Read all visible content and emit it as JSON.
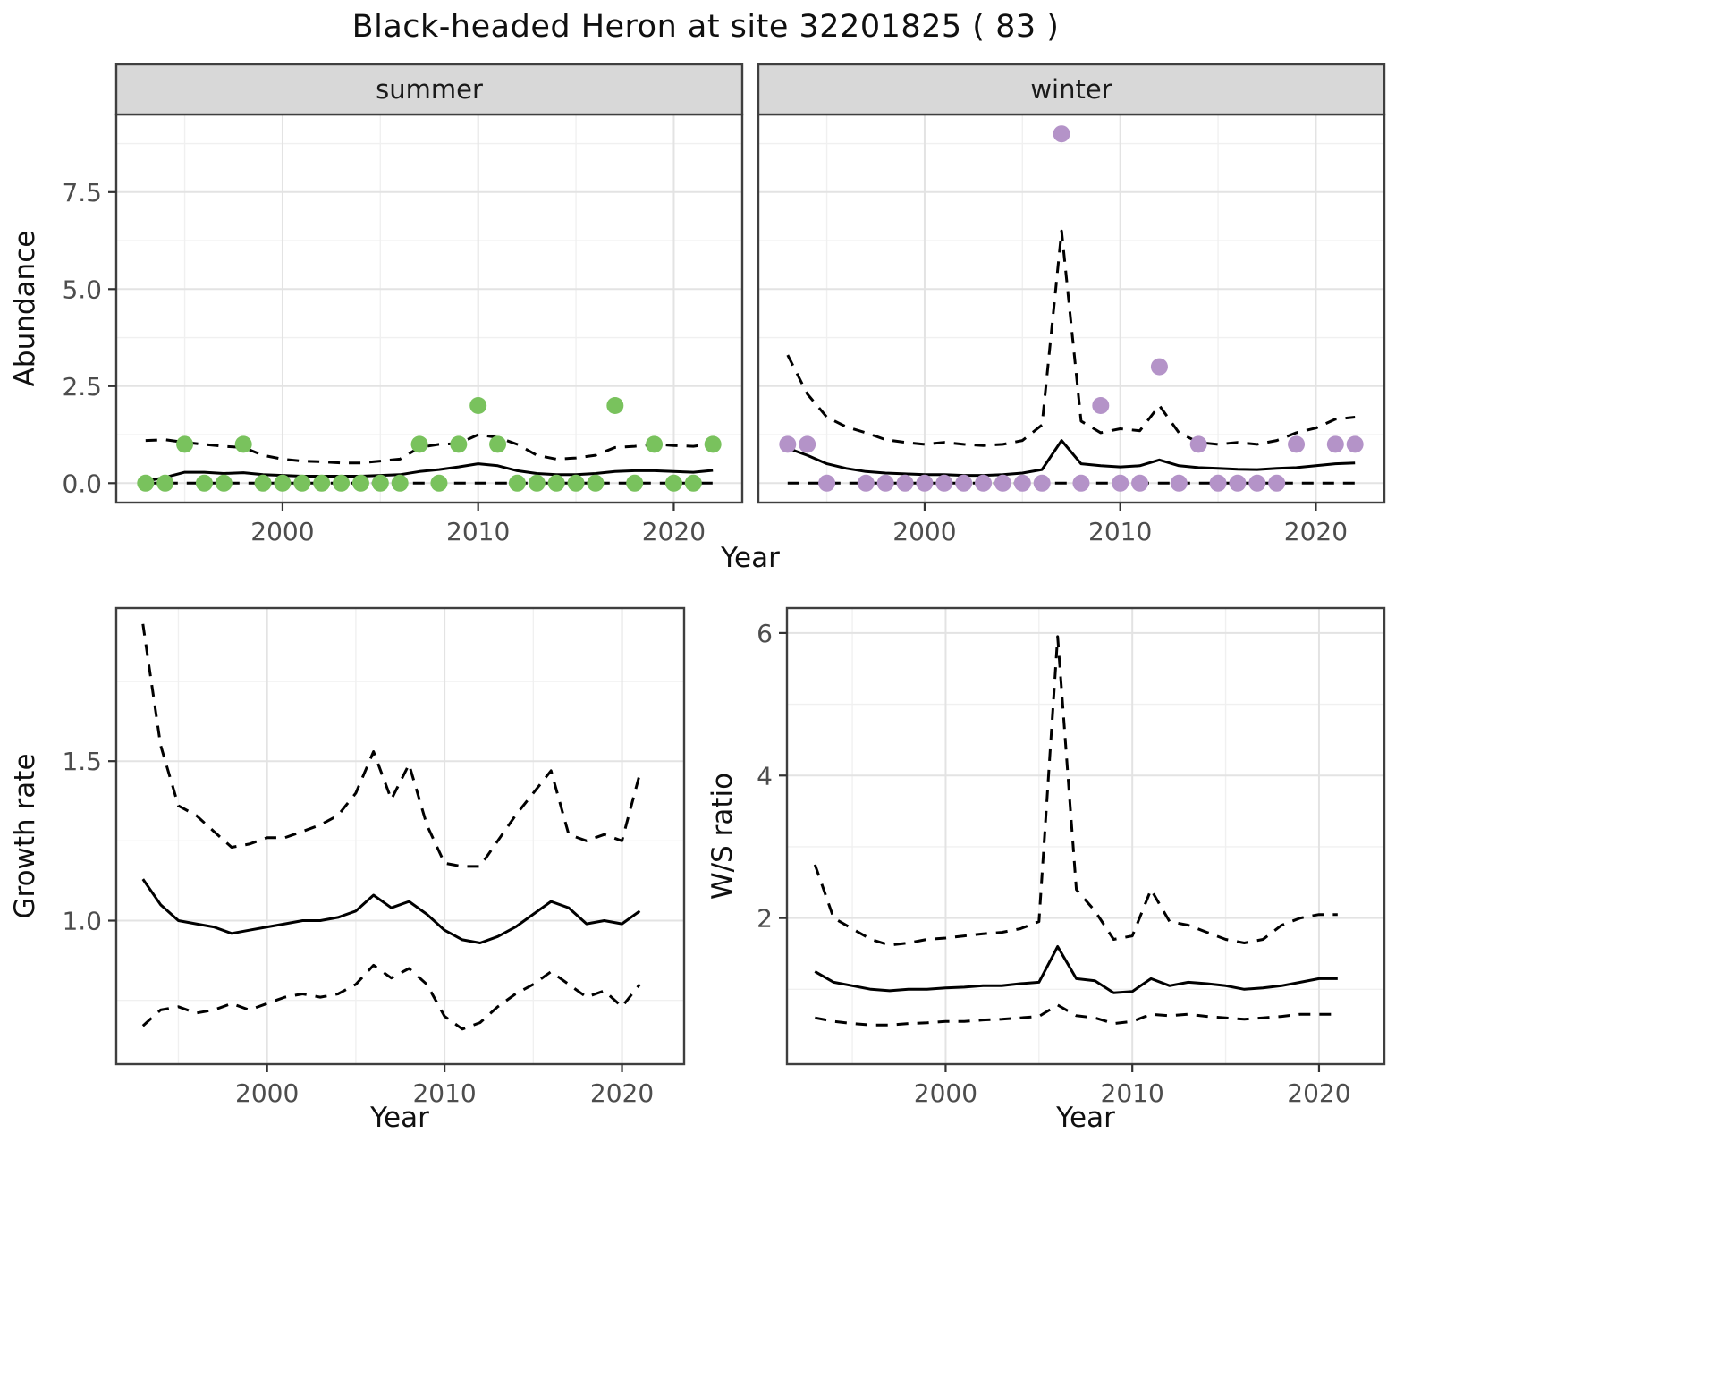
{
  "title": "Black-headed Heron at site 32201825 ( 83 )",
  "top": {
    "xlabel": "Year",
    "ylabel": "Abundance"
  },
  "bottom_left": {
    "xlabel": "Year",
    "ylabel": "Growth rate"
  },
  "bottom_right": {
    "xlabel": "Year",
    "ylabel": "W/S ratio"
  },
  "colors": {
    "summer_points": "#79c25d",
    "winter_points": "#b493c8",
    "line": "#000000",
    "grid_major": "#e3e3e3",
    "grid_minor": "#f0f0f0",
    "panel_border": "#3f3f3f",
    "strip_fill": "#d8d8d8",
    "tick_text": "#4d4d4d"
  },
  "chart_data": [
    {
      "id": "abundance-summer",
      "type": "scatter",
      "facet_label": "summer",
      "xlabel": "Year",
      "ylabel": "Abundance",
      "xlim": [
        1991.5,
        2023.5
      ],
      "ylim": [
        -0.5,
        9.5
      ],
      "xticks": [
        2000,
        2010,
        2020
      ],
      "xtick_labels": [
        "2000",
        "2010",
        "2020"
      ],
      "xminor": [
        1995,
        2005,
        2015
      ],
      "yticks": [
        0,
        2.5,
        5,
        7.5
      ],
      "ytick_labels": [
        "0.0",
        "2.5",
        "5.0",
        "7.5"
      ],
      "yminor": [
        1.25,
        3.75,
        6.25,
        8.75
      ],
      "show_yticks": true,
      "show_ytick_labels": true,
      "years": [
        1993,
        1994,
        1995,
        1996,
        1997,
        1998,
        1999,
        2000,
        2001,
        2002,
        2003,
        2004,
        2005,
        2006,
        2007,
        2008,
        2009,
        2010,
        2011,
        2012,
        2013,
        2014,
        2015,
        2016,
        2017,
        2018,
        2019,
        2020,
        2021,
        2022
      ],
      "points": {
        "color": "#79c25d",
        "x": [
          1993,
          1994,
          1995,
          1996,
          1997,
          1998,
          1999,
          2000,
          2001,
          2002,
          2003,
          2004,
          2005,
          2006,
          2007,
          2008,
          2009,
          2010,
          2011,
          2012,
          2013,
          2014,
          2015,
          2016,
          2017,
          2018,
          2019,
          2020,
          2021,
          2022
        ],
        "y": [
          0,
          0,
          1,
          0,
          0,
          1,
          0,
          0,
          0,
          0,
          0,
          0,
          0,
          0,
          1,
          0,
          1,
          2,
          1,
          0,
          0,
          0,
          0,
          0,
          2,
          0,
          1,
          0,
          0,
          1
        ]
      },
      "lines": [
        {
          "name": "median",
          "style": "solid",
          "y": [
            0.05,
            0.15,
            0.28,
            0.28,
            0.25,
            0.27,
            0.22,
            0.2,
            0.18,
            0.18,
            0.18,
            0.18,
            0.2,
            0.22,
            0.3,
            0.35,
            0.42,
            0.5,
            0.45,
            0.32,
            0.25,
            0.22,
            0.22,
            0.25,
            0.3,
            0.32,
            0.32,
            0.3,
            0.28,
            0.33
          ]
        },
        {
          "name": "upper95",
          "style": "dashed",
          "y": [
            1.1,
            1.12,
            1.05,
            1.0,
            0.95,
            0.92,
            0.72,
            0.62,
            0.57,
            0.55,
            0.52,
            0.52,
            0.57,
            0.62,
            0.92,
            1.0,
            1.02,
            1.25,
            1.18,
            1.0,
            0.72,
            0.62,
            0.65,
            0.72,
            0.92,
            0.95,
            1.0,
            0.97,
            0.95,
            1.02
          ]
        },
        {
          "name": "lower95",
          "style": "dashed",
          "y": [
            0,
            0,
            0,
            0,
            0,
            0,
            0,
            0,
            0,
            0,
            0,
            0,
            0,
            0,
            0,
            0,
            0,
            0,
            0,
            0,
            0,
            0,
            0,
            0,
            0,
            0,
            0,
            0,
            0,
            0
          ]
        }
      ]
    },
    {
      "id": "abundance-winter",
      "type": "scatter",
      "facet_label": "winter",
      "xlabel": "Year",
      "ylabel": "Abundance",
      "xlim": [
        1991.5,
        2023.5
      ],
      "ylim": [
        -0.5,
        9.5
      ],
      "xticks": [
        2000,
        2010,
        2020
      ],
      "xtick_labels": [
        "2000",
        "2010",
        "2020"
      ],
      "xminor": [
        1995,
        2005,
        2015
      ],
      "yticks": [
        0,
        2.5,
        5,
        7.5
      ],
      "ytick_labels": [
        "0.0",
        "2.5",
        "5.0",
        "7.5"
      ],
      "yminor": [
        1.25,
        3.75,
        6.25,
        8.75
      ],
      "show_yticks": false,
      "show_ytick_labels": false,
      "years": [
        1993,
        1994,
        1995,
        1996,
        1997,
        1998,
        1999,
        2000,
        2001,
        2002,
        2003,
        2004,
        2005,
        2006,
        2007,
        2008,
        2009,
        2010,
        2011,
        2012,
        2013,
        2014,
        2015,
        2016,
        2017,
        2018,
        2019,
        2020,
        2021,
        2022
      ],
      "points": {
        "color": "#b493c8",
        "x": [
          1993,
          1994,
          1995,
          1997,
          1998,
          1999,
          2000,
          2001,
          2002,
          2003,
          2004,
          2005,
          2006,
          2007,
          2008,
          2009,
          2010,
          2011,
          2012,
          2013,
          2014,
          2015,
          2016,
          2017,
          2018,
          2019,
          2021,
          2022
        ],
        "y": [
          1,
          1,
          0,
          0,
          0,
          0,
          0,
          0,
          0,
          0,
          0,
          0,
          0,
          9,
          0,
          2,
          0,
          0,
          3,
          0,
          1,
          0,
          0,
          0,
          0,
          1,
          1,
          1
        ]
      },
      "lines": [
        {
          "name": "median",
          "style": "solid",
          "y": [
            0.9,
            0.72,
            0.5,
            0.38,
            0.3,
            0.26,
            0.24,
            0.22,
            0.22,
            0.2,
            0.2,
            0.22,
            0.26,
            0.35,
            1.1,
            0.5,
            0.45,
            0.42,
            0.45,
            0.6,
            0.45,
            0.4,
            0.38,
            0.36,
            0.35,
            0.38,
            0.4,
            0.45,
            0.5,
            0.52
          ]
        },
        {
          "name": "upper95",
          "style": "dashed",
          "y": [
            3.3,
            2.3,
            1.7,
            1.45,
            1.3,
            1.12,
            1.05,
            1.0,
            1.05,
            1.0,
            0.97,
            1.0,
            1.1,
            1.5,
            6.5,
            1.6,
            1.3,
            1.4,
            1.35,
            2.0,
            1.3,
            1.05,
            1.0,
            1.05,
            1.0,
            1.1,
            1.3,
            1.42,
            1.65,
            1.7
          ]
        },
        {
          "name": "lower95",
          "style": "dashed",
          "y": [
            0,
            0,
            0,
            0,
            0,
            0,
            0,
            0,
            0,
            0,
            0,
            0,
            0,
            0,
            0,
            0,
            0,
            0,
            0,
            0,
            0,
            0,
            0,
            0,
            0,
            0,
            0,
            0,
            0,
            0
          ]
        }
      ]
    },
    {
      "id": "growth-rate",
      "type": "line",
      "facet_label": null,
      "xlabel": "Year",
      "ylabel": "Growth rate",
      "xlim": [
        1991.5,
        2023.5
      ],
      "ylim": [
        0.55,
        1.98
      ],
      "xticks": [
        2000,
        2010,
        2020
      ],
      "xtick_labels": [
        "2000",
        "2010",
        "2020"
      ],
      "xminor": [
        1995,
        2005,
        2015
      ],
      "yticks": [
        1.0,
        1.5
      ],
      "ytick_labels": [
        "1.0",
        "1.5"
      ],
      "yminor": [
        0.75,
        1.25,
        1.75
      ],
      "show_yticks": true,
      "show_ytick_labels": true,
      "years": [
        1993,
        1994,
        1995,
        1996,
        1997,
        1998,
        1999,
        2000,
        2001,
        2002,
        2003,
        2004,
        2005,
        2006,
        2007,
        2008,
        2009,
        2010,
        2011,
        2012,
        2013,
        2014,
        2015,
        2016,
        2017,
        2018,
        2019,
        2020,
        2021
      ],
      "points": null,
      "lines": [
        {
          "name": "median",
          "style": "solid",
          "y": [
            1.13,
            1.05,
            1.0,
            0.99,
            0.98,
            0.96,
            0.97,
            0.98,
            0.99,
            1.0,
            1.0,
            1.01,
            1.03,
            1.08,
            1.04,
            1.06,
            1.02,
            0.97,
            0.94,
            0.93,
            0.95,
            0.98,
            1.02,
            1.06,
            1.04,
            0.99,
            1.0,
            0.99,
            1.03
          ]
        },
        {
          "name": "upper95",
          "style": "dashed",
          "y": [
            1.93,
            1.55,
            1.36,
            1.33,
            1.28,
            1.23,
            1.24,
            1.26,
            1.26,
            1.28,
            1.3,
            1.33,
            1.4,
            1.53,
            1.38,
            1.49,
            1.3,
            1.18,
            1.17,
            1.17,
            1.25,
            1.33,
            1.4,
            1.47,
            1.27,
            1.25,
            1.27,
            1.25,
            1.46
          ]
        },
        {
          "name": "lower95",
          "style": "dashed",
          "y": [
            0.67,
            0.72,
            0.73,
            0.71,
            0.72,
            0.74,
            0.72,
            0.74,
            0.76,
            0.77,
            0.76,
            0.77,
            0.8,
            0.86,
            0.82,
            0.85,
            0.8,
            0.7,
            0.66,
            0.68,
            0.73,
            0.77,
            0.8,
            0.84,
            0.8,
            0.76,
            0.78,
            0.73,
            0.8
          ]
        }
      ]
    },
    {
      "id": "ws-ratio",
      "type": "line",
      "facet_label": null,
      "xlabel": "Year",
      "ylabel": "W/S ratio",
      "xlim": [
        1991.5,
        2023.5
      ],
      "ylim": [
        -0.05,
        6.35
      ],
      "xticks": [
        2000,
        2010,
        2020
      ],
      "xtick_labels": [
        "2000",
        "2010",
        "2020"
      ],
      "xminor": [
        1995,
        2005,
        2015
      ],
      "yticks": [
        2,
        4,
        6
      ],
      "ytick_labels": [
        "2",
        "4",
        "6"
      ],
      "yminor": [
        1,
        3,
        5
      ],
      "show_yticks": true,
      "show_ytick_labels": true,
      "years": [
        1993,
        1994,
        1995,
        1996,
        1997,
        1998,
        1999,
        2000,
        2001,
        2002,
        2003,
        2004,
        2005,
        2006,
        2007,
        2008,
        2009,
        2010,
        2011,
        2012,
        2013,
        2014,
        2015,
        2016,
        2017,
        2018,
        2019,
        2020,
        2021
      ],
      "points": null,
      "lines": [
        {
          "name": "median",
          "style": "solid",
          "y": [
            1.25,
            1.1,
            1.05,
            1.0,
            0.98,
            1.0,
            1.0,
            1.02,
            1.03,
            1.05,
            1.05,
            1.08,
            1.1,
            1.6,
            1.15,
            1.12,
            0.95,
            0.97,
            1.15,
            1.05,
            1.1,
            1.08,
            1.05,
            1.0,
            1.02,
            1.05,
            1.1,
            1.15,
            1.15
          ]
        },
        {
          "name": "upper95",
          "style": "dashed",
          "y": [
            2.75,
            2.0,
            1.85,
            1.7,
            1.62,
            1.65,
            1.7,
            1.72,
            1.75,
            1.78,
            1.8,
            1.85,
            1.95,
            5.95,
            2.4,
            2.1,
            1.7,
            1.75,
            2.4,
            1.95,
            1.9,
            1.8,
            1.7,
            1.65,
            1.7,
            1.9,
            2.0,
            2.05,
            2.05
          ]
        },
        {
          "name": "lower95",
          "style": "dashed",
          "y": [
            0.6,
            0.55,
            0.52,
            0.5,
            0.5,
            0.52,
            0.53,
            0.55,
            0.55,
            0.57,
            0.58,
            0.6,
            0.62,
            0.78,
            0.63,
            0.6,
            0.52,
            0.55,
            0.65,
            0.63,
            0.65,
            0.62,
            0.6,
            0.58,
            0.6,
            0.62,
            0.65,
            0.65,
            0.65
          ]
        }
      ]
    }
  ]
}
